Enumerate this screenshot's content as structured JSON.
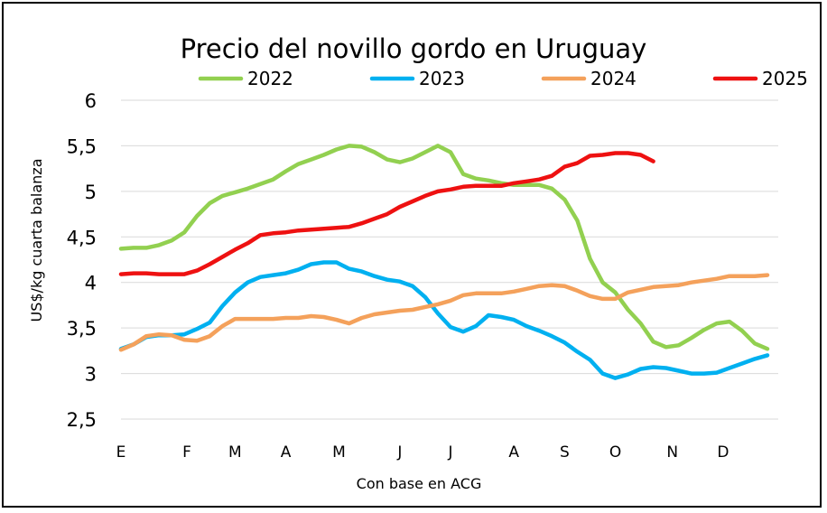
{
  "chart_data": {
    "type": "line",
    "title": "Precio del novillo gordo en Uruguay",
    "xlabel": "Con base en ACG",
    "ylabel": "US$/kg cuarta balanza",
    "ylim": [
      2.5,
      6
    ],
    "yticks": [
      2.5,
      3,
      3.5,
      4,
      4.5,
      5,
      5.5,
      6
    ],
    "ytick_labels": [
      "2,5",
      "3",
      "3,5",
      "4",
      "4,5",
      "5",
      "5,5",
      "6"
    ],
    "xlim": [
      1,
      52
    ],
    "x_ticks": [
      {
        "label": "E",
        "week": 1
      },
      {
        "label": "F",
        "week": 6.2
      },
      {
        "label": "M",
        "week": 10
      },
      {
        "label": "A",
        "week": 14
      },
      {
        "label": "M",
        "week": 18.2
      },
      {
        "label": "J",
        "week": 23
      },
      {
        "label": "J",
        "week": 27
      },
      {
        "label": "A",
        "week": 32
      },
      {
        "label": "S",
        "week": 36
      },
      {
        "label": "O",
        "week": 40
      },
      {
        "label": "N",
        "week": 44.5
      },
      {
        "label": "D",
        "week": 48.5
      }
    ],
    "grid": true,
    "legend_position": "top",
    "series": [
      {
        "name": "2022",
        "color": "#92d050",
        "x": [
          1,
          2,
          3,
          4,
          5,
          6,
          7,
          8,
          9,
          10,
          11,
          12,
          13,
          14,
          15,
          16,
          17,
          18,
          19,
          20,
          21,
          22,
          23,
          24,
          25,
          26,
          27,
          28,
          29,
          30,
          31,
          32,
          33,
          34,
          35,
          36,
          37,
          38,
          39,
          40,
          41,
          42,
          43,
          44,
          45,
          46,
          47,
          48,
          49,
          50,
          51,
          52
        ],
        "y": [
          4.37,
          4.38,
          4.38,
          4.41,
          4.46,
          4.55,
          4.73,
          4.87,
          4.95,
          4.99,
          5.03,
          5.08,
          5.13,
          5.22,
          5.3,
          5.35,
          5.4,
          5.46,
          5.5,
          5.49,
          5.43,
          5.35,
          5.32,
          5.36,
          5.43,
          5.5,
          5.43,
          5.19,
          5.14,
          5.12,
          5.09,
          5.07,
          5.07,
          5.07,
          5.03,
          4.91,
          4.68,
          4.26,
          4.0,
          3.89,
          3.7,
          3.55,
          3.35,
          3.29,
          3.31,
          3.39,
          3.48,
          3.55,
          3.57,
          3.47,
          3.33,
          3.27
        ]
      },
      {
        "name": "2023",
        "color": "#00b0f0",
        "x": [
          1,
          2,
          3,
          4,
          5,
          6,
          7,
          8,
          9,
          10,
          11,
          12,
          13,
          14,
          15,
          16,
          17,
          18,
          19,
          20,
          21,
          22,
          23,
          24,
          25,
          26,
          27,
          28,
          29,
          30,
          31,
          32,
          33,
          34,
          35,
          36,
          37,
          38,
          39,
          40,
          41,
          42,
          43,
          44,
          45,
          46,
          47,
          48,
          49,
          50,
          51,
          52
        ],
        "y": [
          3.27,
          3.32,
          3.4,
          3.42,
          3.42,
          3.43,
          3.49,
          3.56,
          3.74,
          3.89,
          4.0,
          4.06,
          4.08,
          4.1,
          4.14,
          4.2,
          4.22,
          4.22,
          4.15,
          4.12,
          4.07,
          4.03,
          4.01,
          3.96,
          3.84,
          3.66,
          3.51,
          3.46,
          3.52,
          3.64,
          3.62,
          3.59,
          3.52,
          3.47,
          3.41,
          3.34,
          3.24,
          3.15,
          3.0,
          2.95,
          2.99,
          3.05,
          3.07,
          3.06,
          3.03,
          3.0,
          3.0,
          3.01,
          3.06,
          3.11,
          3.16,
          3.2
        ]
      },
      {
        "name": "2024",
        "color": "#f4a15b",
        "x": [
          1,
          2,
          3,
          4,
          5,
          6,
          7,
          8,
          9,
          10,
          11,
          12,
          13,
          14,
          15,
          16,
          17,
          18,
          19,
          20,
          21,
          22,
          23,
          24,
          25,
          26,
          27,
          28,
          29,
          30,
          31,
          32,
          33,
          34,
          35,
          36,
          37,
          38,
          39,
          40,
          41,
          42,
          43,
          44,
          45,
          46,
          47,
          48,
          49,
          50,
          51,
          52
        ],
        "y": [
          3.26,
          3.32,
          3.41,
          3.43,
          3.42,
          3.37,
          3.36,
          3.41,
          3.52,
          3.6,
          3.6,
          3.6,
          3.6,
          3.61,
          3.61,
          3.63,
          3.62,
          3.59,
          3.55,
          3.61,
          3.65,
          3.67,
          3.69,
          3.7,
          3.73,
          3.76,
          3.8,
          3.86,
          3.88,
          3.88,
          3.88,
          3.9,
          3.93,
          3.96,
          3.97,
          3.96,
          3.91,
          3.85,
          3.82,
          3.82,
          3.89,
          3.92,
          3.95,
          3.96,
          3.97,
          4.0,
          4.02,
          4.04,
          4.07,
          4.07,
          4.07,
          4.08
        ]
      },
      {
        "name": "2025",
        "color": "#ee1111",
        "x": [
          1,
          2,
          3,
          4,
          5,
          6,
          7,
          8,
          9,
          10,
          11,
          12,
          13,
          14,
          15,
          16,
          17,
          18,
          19,
          20,
          21,
          22,
          23,
          24,
          25,
          26,
          27,
          28,
          29,
          30,
          31,
          32,
          33,
          34,
          35,
          36,
          37,
          38,
          39,
          40,
          41,
          42,
          43
        ],
        "y": [
          4.09,
          4.1,
          4.1,
          4.09,
          4.09,
          4.09,
          4.13,
          4.2,
          4.28,
          4.36,
          4.43,
          4.52,
          4.54,
          4.55,
          4.57,
          4.58,
          4.59,
          4.6,
          4.61,
          4.65,
          4.7,
          4.75,
          4.83,
          4.89,
          4.95,
          5.0,
          5.02,
          5.05,
          5.06,
          5.06,
          5.06,
          5.09,
          5.11,
          5.13,
          5.17,
          5.27,
          5.31,
          5.39,
          5.4,
          5.42,
          5.42,
          5.4,
          5.33
        ]
      }
    ]
  }
}
